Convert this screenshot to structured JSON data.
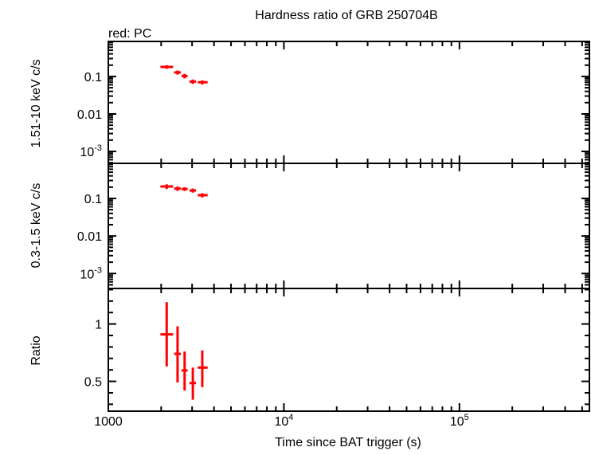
{
  "chart_data": {
    "title": "Hardness ratio of GRB 250704B",
    "legend_note": "red: PC",
    "xlabel": "Time since BAT trigger (s)",
    "xscale": "log",
    "xlim": [
      1000,
      550000
    ],
    "xticks": [
      {
        "value": 1000,
        "label": "1000"
      },
      {
        "value": 10000,
        "label": "10",
        "sup": "4"
      },
      {
        "value": 100000,
        "label": "10",
        "sup": "5"
      }
    ],
    "series_color": "#ff0000",
    "x": [
      2150,
      2480,
      2720,
      3030,
      3430
    ],
    "xerr_low": [
      170,
      110,
      110,
      130,
      200
    ],
    "xerr_high": [
      190,
      110,
      110,
      130,
      250
    ],
    "panels": [
      {
        "ylabel": "1.51-10 keV c/s",
        "yscale": "log",
        "ylim": [
          0.00048,
          0.86
        ],
        "yticks": [
          {
            "value": 0.1,
            "label": "0.1"
          },
          {
            "value": 0.01,
            "label": "0.01"
          },
          {
            "value": 0.001,
            "label": "10",
            "sup": "-3"
          }
        ],
        "values": [
          0.18,
          0.128,
          0.103,
          0.073,
          0.07
        ],
        "yerr_low": [
          0.02,
          0.016,
          0.014,
          0.01,
          0.009
        ],
        "yerr_high": [
          0.02,
          0.016,
          0.014,
          0.01,
          0.009
        ]
      },
      {
        "ylabel": "0.3-1.5 keV c/s",
        "yscale": "log",
        "ylim": [
          0.0004,
          0.86
        ],
        "yticks": [
          {
            "value": 0.1,
            "label": "0.1"
          },
          {
            "value": 0.01,
            "label": "0.01"
          },
          {
            "value": 0.001,
            "label": "10",
            "sup": "-3"
          }
        ],
        "values": [
          0.208,
          0.183,
          0.178,
          0.163,
          0.122
        ],
        "yerr_low": [
          0.03,
          0.025,
          0.02,
          0.02,
          0.016
        ],
        "yerr_high": [
          0.03,
          0.025,
          0.02,
          0.02,
          0.016
        ]
      },
      {
        "ylabel": "Ratio",
        "yscale": "linear",
        "ylim": [
          0.24,
          1.31
        ],
        "yticks": [
          {
            "value": 1,
            "label": "1"
          },
          {
            "value": 0.5,
            "label": "0.5"
          }
        ],
        "values": [
          0.91,
          0.74,
          0.595,
          0.485,
          0.62
        ],
        "yerr_low": [
          0.28,
          0.25,
          0.175,
          0.145,
          0.17
        ],
        "yerr_high": [
          0.28,
          0.24,
          0.165,
          0.135,
          0.15
        ]
      }
    ]
  }
}
